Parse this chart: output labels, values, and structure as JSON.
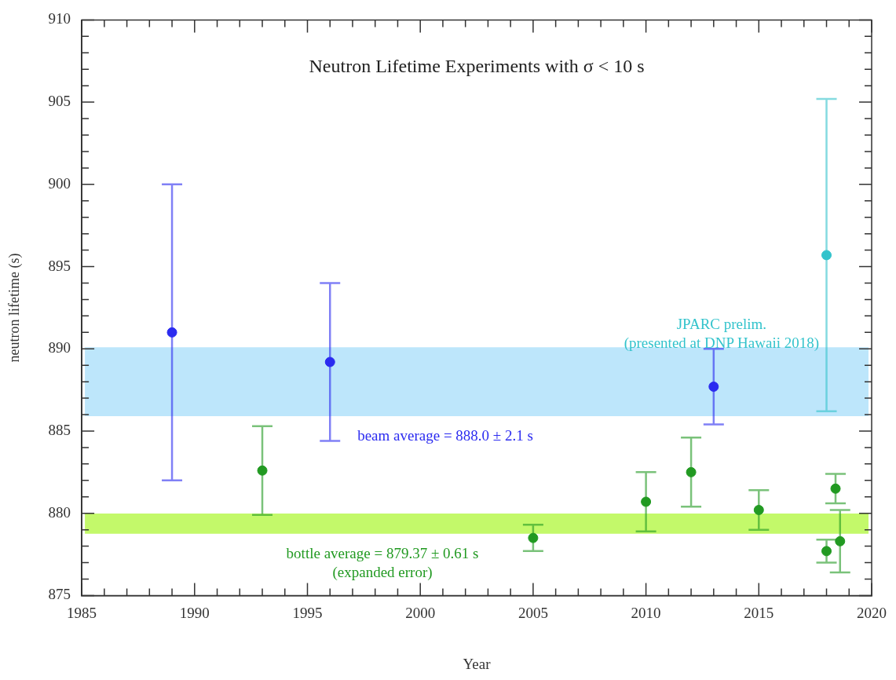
{
  "chart_data": {
    "type": "scatter",
    "title": "Neutron Lifetime Experiments with σ < 10 s",
    "xlabel": "Year",
    "ylabel": "neutron lifetime (s)",
    "marker": "circle",
    "series": [
      {
        "color": "#2b2bf0",
        "x": [
          1989,
          1996,
          2013
        ],
        "values": [
          891.0,
          889.2,
          887.7
        ],
        "errors": [
          9.0,
          4.8,
          2.3
        ]
      },
      {
        "color": "#229a22",
        "x": [
          1993,
          2005,
          2010,
          2012,
          2015,
          2018,
          2018.4,
          2018.6
        ],
        "values": [
          882.6,
          878.5,
          880.7,
          882.5,
          880.2,
          877.7,
          881.5,
          878.3
        ],
        "errors": [
          2.7,
          0.8,
          1.8,
          2.1,
          1.2,
          0.7,
          0.9,
          1.9
        ]
      },
      {
        "color": "#33c3cc",
        "x": [
          2018
        ],
        "values": [
          895.7
        ],
        "errors": [
          9.5
        ]
      }
    ],
    "bands": [
      {
        "axis": "y",
        "from": 885.9,
        "to": 890.1,
        "label": "beam average = 888.0 ± 2.1 s",
        "color": "#bde6fb"
      },
      {
        "axis": "y",
        "from": 878.76,
        "to": 879.98,
        "label": "bottle average = 879.37 ± 0.61 s\n(expanded error)",
        "color": "#c3f96a"
      }
    ],
    "annotations": [
      "JPARC prelim.\n(presented at DNP Hawaii 2018)"
    ],
    "xlim": [
      1985,
      2020
    ],
    "xticks": [
      1985,
      {
        "value": 1986,
        "label": null
      },
      {
        "value": 1987,
        "label": null
      },
      {
        "value": 1988,
        "label": null
      },
      {
        "value": 1989,
        "label": null
      },
      1990,
      {
        "value": 1991,
        "label": null
      },
      {
        "value": 1992,
        "label": null
      },
      {
        "value": 1993,
        "label": null
      },
      {
        "value": 1994,
        "label": null
      },
      1995,
      {
        "value": 1996,
        "label": null
      },
      {
        "value": 1997,
        "label": null
      },
      {
        "value": 1998,
        "label": null
      },
      {
        "value": 1999,
        "label": null
      },
      2000,
      {
        "value": 2001,
        "label": null
      },
      {
        "value": 2002,
        "label": null
      },
      {
        "value": 2003,
        "label": null
      },
      {
        "value": 2004,
        "label": null
      },
      2005,
      {
        "value": 2006,
        "label": null
      },
      {
        "value": 2007,
        "label": null
      },
      {
        "value": 2008,
        "label": null
      },
      {
        "value": 2009,
        "label": null
      },
      2010,
      {
        "value": 2011,
        "label": null
      },
      {
        "value": 2012,
        "label": null
      },
      {
        "value": 2013,
        "label": null
      },
      {
        "value": 2014,
        "label": null
      },
      2015,
      {
        "value": 2016,
        "label": null
      },
      {
        "value": 2017,
        "label": null
      },
      {
        "value": 2018,
        "label": null
      },
      {
        "value": 2019,
        "label": null
      },
      2020
    ],
    "ylim": [
      875,
      910
    ],
    "yticks": [
      875,
      {
        "value": 876,
        "label": null
      },
      {
        "value": 877,
        "label": null
      },
      {
        "value": 878,
        "label": null
      },
      {
        "value": 879,
        "label": null
      },
      880,
      {
        "value": 881,
        "label": null
      },
      {
        "value": 882,
        "label": null
      },
      {
        "value": 883,
        "label": null
      },
      {
        "value": 884,
        "label": null
      },
      885,
      {
        "value": 886,
        "label": null
      },
      {
        "value": 887,
        "label": null
      },
      {
        "value": 888,
        "label": null
      },
      {
        "value": 889,
        "label": null
      },
      890,
      {
        "value": 891,
        "label": null
      },
      {
        "value": 892,
        "label": null
      },
      {
        "value": 893,
        "label": null
      },
      {
        "value": 894,
        "label": null
      },
      895,
      {
        "value": 896,
        "label": null
      },
      {
        "value": 897,
        "label": null
      },
      {
        "value": 898,
        "label": null
      },
      {
        "value": 899,
        "label": null
      },
      900,
      {
        "value": 901,
        "label": null
      },
      {
        "value": 902,
        "label": null
      },
      {
        "value": 903,
        "label": null
      },
      {
        "value": 904,
        "label": null
      },
      905,
      {
        "value": 906,
        "label": null
      },
      {
        "value": 907,
        "label": null
      },
      {
        "value": 908,
        "label": null
      },
      {
        "value": 909,
        "label": null
      },
      910
    ]
  }
}
